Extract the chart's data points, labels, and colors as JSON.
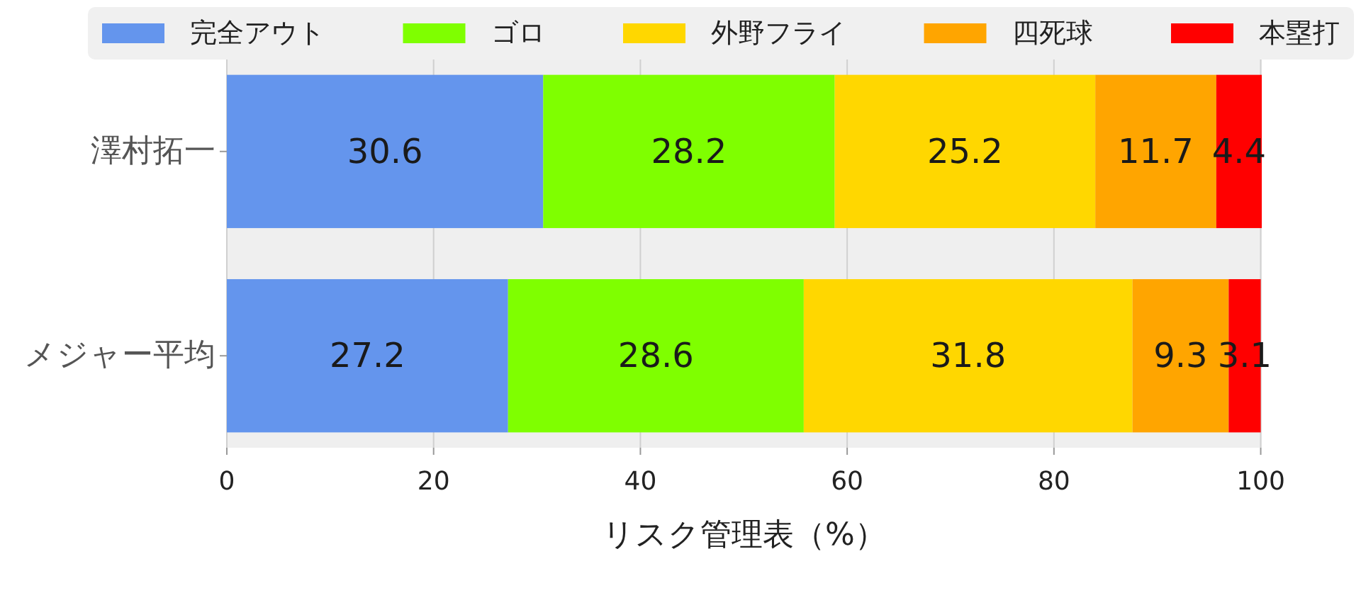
{
  "chart_data": {
    "type": "bar",
    "orientation": "horizontal",
    "stacked": true,
    "categories": [
      "澤村拓一",
      "メジャー平均"
    ],
    "series": [
      {
        "name": "完全アウト",
        "color": "#6495ed",
        "values": [
          30.6,
          27.2
        ]
      },
      {
        "name": "ゴロ",
        "color": "#7fff00",
        "values": [
          28.2,
          28.6
        ]
      },
      {
        "name": "外野フライ",
        "color": "#ffd700",
        "values": [
          25.2,
          31.8
        ]
      },
      {
        "name": "四死球",
        "color": "#ffa500",
        "values": [
          11.7,
          9.3
        ]
      },
      {
        "name": "本塁打",
        "color": "#ff0000",
        "values": [
          4.4,
          3.1
        ]
      }
    ],
    "xlabel": "リスク管理表（%）",
    "xlim": [
      0,
      100.1
    ],
    "xticks": [
      0,
      20,
      40,
      60,
      80,
      100
    ],
    "grid": "x",
    "legend": "top",
    "data_labels": true
  }
}
